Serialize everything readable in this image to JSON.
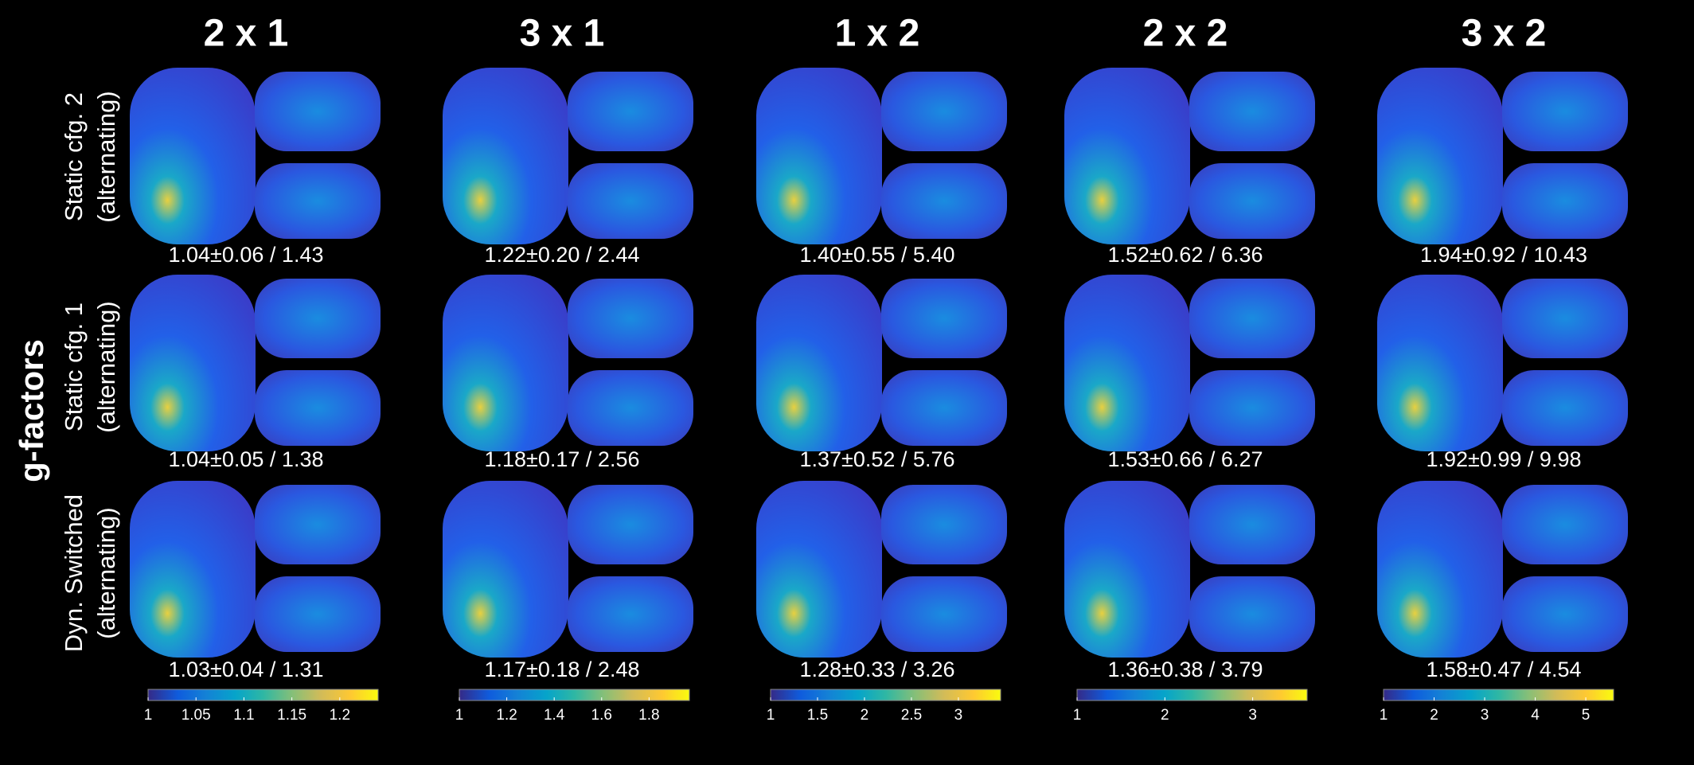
{
  "left_label": "g-factors",
  "rows": [
    {
      "line1": "Static cfg. 2",
      "line2": "(alternating)"
    },
    {
      "line1": "Static cfg. 1",
      "line2": "(alternating)"
    },
    {
      "line1": "Dyn. Switched",
      "line2": "(alternating)"
    }
  ],
  "columns": [
    {
      "title": "2 x 1",
      "stats": [
        "1.04±0.06 / 1.43",
        "1.04±0.05 / 1.38",
        "1.03±0.04 / 1.31"
      ],
      "colorbar": {
        "range": [
          1,
          1.24
        ],
        "ticks": [
          1,
          1.05,
          1.1,
          1.15,
          1.2
        ]
      }
    },
    {
      "title": "3 x 1",
      "stats": [
        "1.22±0.20 / 2.44",
        "1.18±0.17 / 2.56",
        "1.17±0.18 / 2.48"
      ],
      "colorbar": {
        "range": [
          1,
          1.97
        ],
        "ticks": [
          1,
          1.2,
          1.4,
          1.6,
          1.8
        ]
      }
    },
    {
      "title": "1 x 2",
      "stats": [
        "1.40±0.55 / 5.40",
        "1.37±0.52 / 5.76",
        "1.28±0.33 / 3.26"
      ],
      "colorbar": {
        "range": [
          1,
          3.45
        ],
        "ticks": [
          1,
          1.5,
          2,
          2.5,
          3
        ]
      }
    },
    {
      "title": "2 x 2",
      "stats": [
        "1.52±0.62 / 6.36",
        "1.53±0.66 / 6.27",
        "1.36±0.38 / 3.79"
      ],
      "colorbar": {
        "range": [
          1,
          3.62
        ],
        "ticks": [
          1,
          2,
          3
        ]
      }
    },
    {
      "title": "3 x 2",
      "stats": [
        "1.94±0.92 / 10.43",
        "1.92±0.99 / 9.98",
        "1.58±0.47 / 4.54"
      ],
      "colorbar": {
        "range": [
          1,
          5.55
        ],
        "ticks": [
          1,
          2,
          3,
          4,
          5
        ]
      }
    }
  ]
}
